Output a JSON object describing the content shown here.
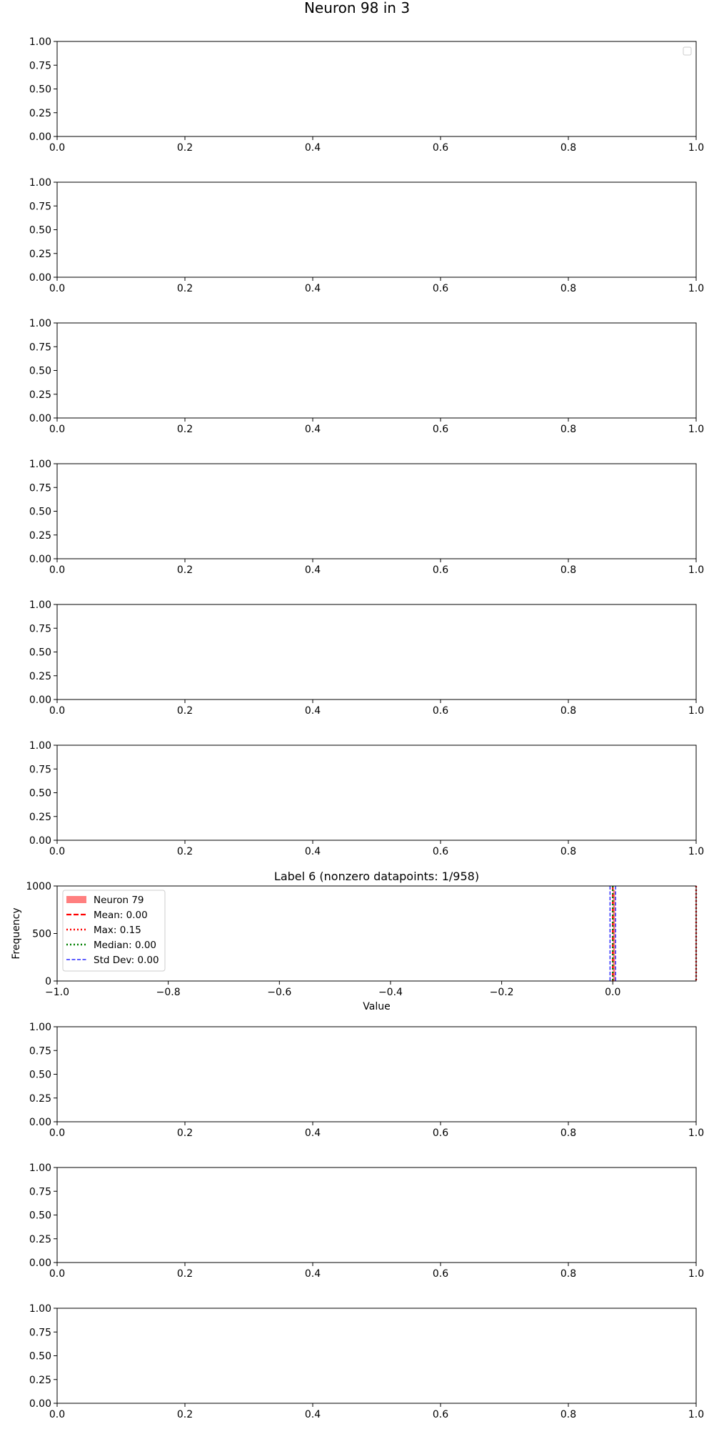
{
  "figure": {
    "title": "Neuron 98 in 3"
  },
  "chart_data": [
    {
      "type": "empty",
      "title": "",
      "xlabel": "",
      "ylabel": "",
      "xlim": [
        0.0,
        1.0
      ],
      "ylim": [
        0.0,
        1.0
      ],
      "xticks": [
        "0.0",
        "0.2",
        "0.4",
        "0.6",
        "0.8",
        "1.0"
      ],
      "yticks": [
        "0.00",
        "0.25",
        "0.50",
        "0.75",
        "1.00"
      ],
      "legend": {
        "position": "upper right",
        "entries": []
      }
    },
    {
      "type": "empty",
      "title": "",
      "xlabel": "",
      "ylabel": "",
      "xlim": [
        0.0,
        1.0
      ],
      "ylim": [
        0.0,
        1.0
      ],
      "xticks": [
        "0.0",
        "0.2",
        "0.4",
        "0.6",
        "0.8",
        "1.0"
      ],
      "yticks": [
        "0.00",
        "0.25",
        "0.50",
        "0.75",
        "1.00"
      ]
    },
    {
      "type": "empty",
      "title": "",
      "xlabel": "",
      "ylabel": "",
      "xlim": [
        0.0,
        1.0
      ],
      "ylim": [
        0.0,
        1.0
      ],
      "xticks": [
        "0.0",
        "0.2",
        "0.4",
        "0.6",
        "0.8",
        "1.0"
      ],
      "yticks": [
        "0.00",
        "0.25",
        "0.50",
        "0.75",
        "1.00"
      ]
    },
    {
      "type": "empty",
      "title": "",
      "xlabel": "",
      "ylabel": "",
      "xlim": [
        0.0,
        1.0
      ],
      "ylim": [
        0.0,
        1.0
      ],
      "xticks": [
        "0.0",
        "0.2",
        "0.4",
        "0.6",
        "0.8",
        "1.0"
      ],
      "yticks": [
        "0.00",
        "0.25",
        "0.50",
        "0.75",
        "1.00"
      ]
    },
    {
      "type": "empty",
      "title": "",
      "xlabel": "",
      "ylabel": "",
      "xlim": [
        0.0,
        1.0
      ],
      "ylim": [
        0.0,
        1.0
      ],
      "xticks": [
        "0.0",
        "0.2",
        "0.4",
        "0.6",
        "0.8",
        "1.0"
      ],
      "yticks": [
        "0.00",
        "0.25",
        "0.50",
        "0.75",
        "1.00"
      ]
    },
    {
      "type": "empty",
      "title": "",
      "xlabel": "",
      "ylabel": "",
      "xlim": [
        0.0,
        1.0
      ],
      "ylim": [
        0.0,
        1.0
      ],
      "xticks": [
        "0.0",
        "0.2",
        "0.4",
        "0.6",
        "0.8",
        "1.0"
      ],
      "yticks": [
        "0.00",
        "0.25",
        "0.50",
        "0.75",
        "1.00"
      ]
    },
    {
      "type": "histogram",
      "title": "Label 6 (nonzero datapoints: 1/958)",
      "xlabel": "Value",
      "ylabel": "Frequency",
      "xlim": [
        -1.0,
        0.15
      ],
      "ylim": [
        0,
        1000
      ],
      "xticks": [
        "−1.0",
        "−0.8",
        "−0.6",
        "−0.4",
        "−0.2",
        "0.0"
      ],
      "yticks": [
        "0",
        "500",
        "1000"
      ],
      "series": [
        {
          "name": "Neuron 79",
          "bins": [
            {
              "x0": 0.0,
              "x1": 0.004,
              "count": 957
            },
            {
              "x0": 0.146,
              "x1": 0.15,
              "count": 1
            }
          ],
          "color": "#ff0000",
          "alpha": 0.5
        }
      ],
      "lines": [
        {
          "name": "Mean: 0.00",
          "x": 0.0,
          "color": "#ff0000",
          "style": "dashed"
        },
        {
          "name": "Max: 0.15",
          "x": 0.15,
          "color": "#ff0000",
          "style": "dotted"
        },
        {
          "name": "Median: 0.00",
          "x": 0.0,
          "color": "#008000",
          "style": "dotted"
        },
        {
          "name": "Std Dev: 0.00",
          "x": -0.005,
          "color": "#0000ff",
          "style": "thin-dashed"
        },
        {
          "name": "",
          "x": 0.005,
          "color": "#0000ff",
          "style": "thin-dashed"
        }
      ],
      "legend": {
        "position": "upper left",
        "entries": [
          {
            "label": "Neuron 79",
            "kind": "patch",
            "color": "#ff0000"
          },
          {
            "label": "Mean: 0.00",
            "kind": "dashed",
            "color": "#ff0000"
          },
          {
            "label": "Max: 0.15",
            "kind": "dotted",
            "color": "#ff0000"
          },
          {
            "label": "Median: 0.00",
            "kind": "dotted",
            "color": "#008000"
          },
          {
            "label": "Std Dev: 0.00",
            "kind": "thin-dashed",
            "color": "#0000ff"
          }
        ]
      }
    },
    {
      "type": "empty",
      "title": "",
      "xlabel": "",
      "ylabel": "",
      "xlim": [
        0.0,
        1.0
      ],
      "ylim": [
        0.0,
        1.0
      ],
      "xticks": [
        "0.0",
        "0.2",
        "0.4",
        "0.6",
        "0.8",
        "1.0"
      ],
      "yticks": [
        "0.00",
        "0.25",
        "0.50",
        "0.75",
        "1.00"
      ]
    },
    {
      "type": "empty",
      "title": "",
      "xlabel": "",
      "ylabel": "",
      "xlim": [
        0.0,
        1.0
      ],
      "ylim": [
        0.0,
        1.0
      ],
      "xticks": [
        "0.0",
        "0.2",
        "0.4",
        "0.6",
        "0.8",
        "1.0"
      ],
      "yticks": [
        "0.00",
        "0.25",
        "0.50",
        "0.75",
        "1.00"
      ]
    },
    {
      "type": "empty",
      "title": "",
      "xlabel": "",
      "ylabel": "",
      "xlim": [
        0.0,
        1.0
      ],
      "ylim": [
        0.0,
        1.0
      ],
      "xticks": [
        "0.0",
        "0.2",
        "0.4",
        "0.6",
        "0.8",
        "1.0"
      ],
      "yticks": [
        "0.00",
        "0.25",
        "0.50",
        "0.75",
        "1.00"
      ]
    }
  ]
}
